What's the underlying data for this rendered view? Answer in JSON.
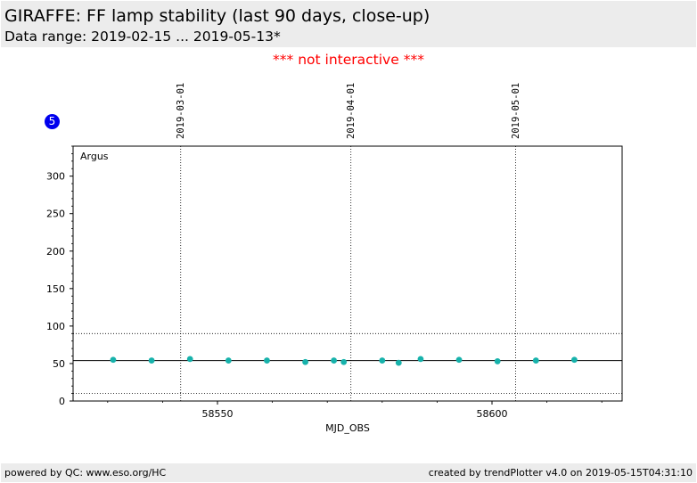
{
  "header": {
    "title": "GIRAFFE: FF lamp stability (last 90 days, close-up)",
    "subtitle": "Data range: 2019-02-15 ... 2019-05-13*"
  },
  "notice": "*** not interactive ***",
  "badge": "5",
  "footer": {
    "left": "powered by QC: www.eso.org/HC",
    "right": "created by trendPlotter v4.0 on 2019-05-15T04:31:10"
  },
  "colors": {
    "point": "#17b2ab",
    "notice": "#ff0000",
    "badge": "#0000ee",
    "panel": "#ececec"
  },
  "chart_data": {
    "type": "scatter",
    "xlabel": "MJD_OBS",
    "ylabel": "",
    "panel_label": "Argus",
    "xlim": [
      58523.7,
      58623.7
    ],
    "ylim": [
      0,
      340
    ],
    "xticks": [
      58550,
      58600
    ],
    "yticks": [
      0,
      50,
      100,
      150,
      200,
      250,
      300
    ],
    "date_markers": [
      {
        "x": 58543.3,
        "label": "2019-03-01"
      },
      {
        "x": 58574.3,
        "label": "2019-04-01"
      },
      {
        "x": 58604.3,
        "label": "2019-05-01"
      }
    ],
    "reference_lines": {
      "mean": 54,
      "upper": 90,
      "lower": 10
    },
    "series": [
      {
        "x": [
          58531,
          58538,
          58545,
          58552,
          58559,
          58566,
          58571.2,
          58573,
          58580,
          58583,
          58587,
          58594,
          58601,
          58608,
          58615
        ],
        "y": [
          55,
          54,
          56,
          54,
          54,
          52,
          54,
          52,
          54,
          51,
          56,
          55,
          53,
          54,
          55
        ]
      }
    ]
  }
}
